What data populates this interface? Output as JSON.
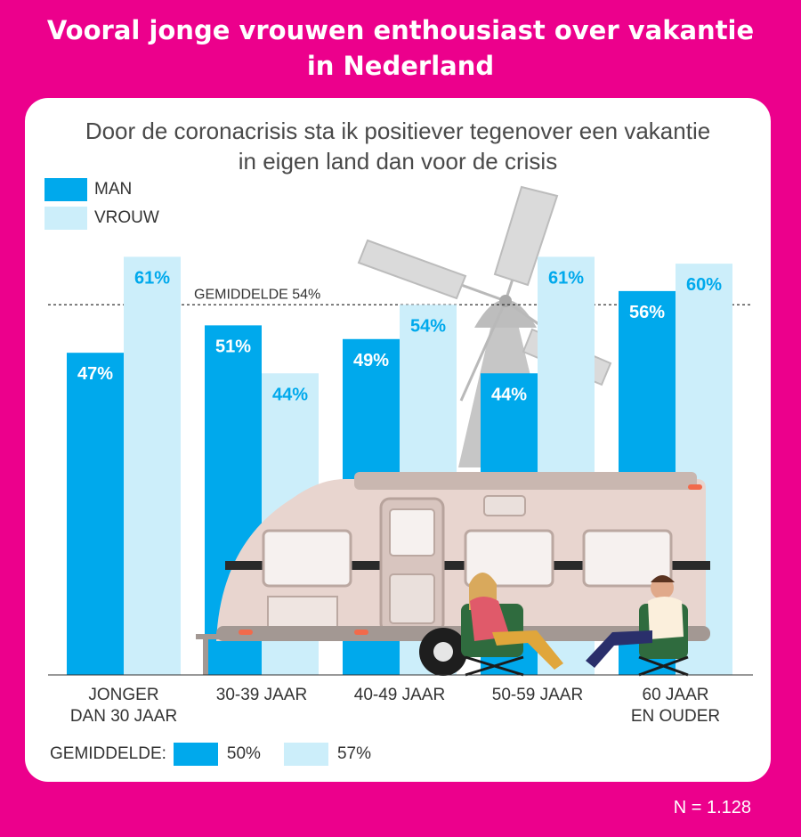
{
  "title_line1": "Vooral jonge vrouwen enthousiast over vakantie",
  "title_line2": "in Nederland",
  "footer_n": "N = 1.128",
  "colors": {
    "background": "#EC008C",
    "man": "#00A9EC",
    "vrouw": "#CCEEFA",
    "value_man_text": "#FFFFFF",
    "value_vrouw_text": "#00A9EC"
  },
  "icons": [
    "windmill-illustration",
    "caravan-illustration",
    "woman-in-chair-illustration",
    "man-in-chair-illustration"
  ],
  "chart_data": {
    "type": "bar",
    "title_line1": "Door de coronacrisis sta ik positiever tegenover een vakantie",
    "title_line2": "in eigen land dan voor de crisis",
    "categories": [
      {
        "line1": "JONGER",
        "line2": "DAN 30 JAAR"
      },
      {
        "line1": "30-39 JAAR",
        "line2": ""
      },
      {
        "line1": "40-49 JAAR",
        "line2": ""
      },
      {
        "line1": "50-59 JAAR",
        "line2": ""
      },
      {
        "line1": "60 JAAR",
        "line2": "EN OUDER"
      }
    ],
    "series": [
      {
        "name": "MAN",
        "values": [
          47,
          51,
          49,
          44,
          56
        ],
        "labels": [
          "47%",
          "51%",
          "49%",
          "44%",
          "56%"
        ]
      },
      {
        "name": "VROUW",
        "values": [
          61,
          44,
          54,
          61,
          60
        ],
        "labels": [
          "61%",
          "44%",
          "54%",
          "61%",
          "60%"
        ]
      }
    ],
    "reference_line": {
      "value": 54,
      "label": "GEMIDDELDE 54%",
      "style": "dotted"
    },
    "ylim": [
      0,
      63
    ],
    "grid": false,
    "legend_position": "top-left",
    "averages": {
      "label": "GEMIDDELDE:",
      "man": "50%",
      "vrouw": "57%"
    }
  }
}
